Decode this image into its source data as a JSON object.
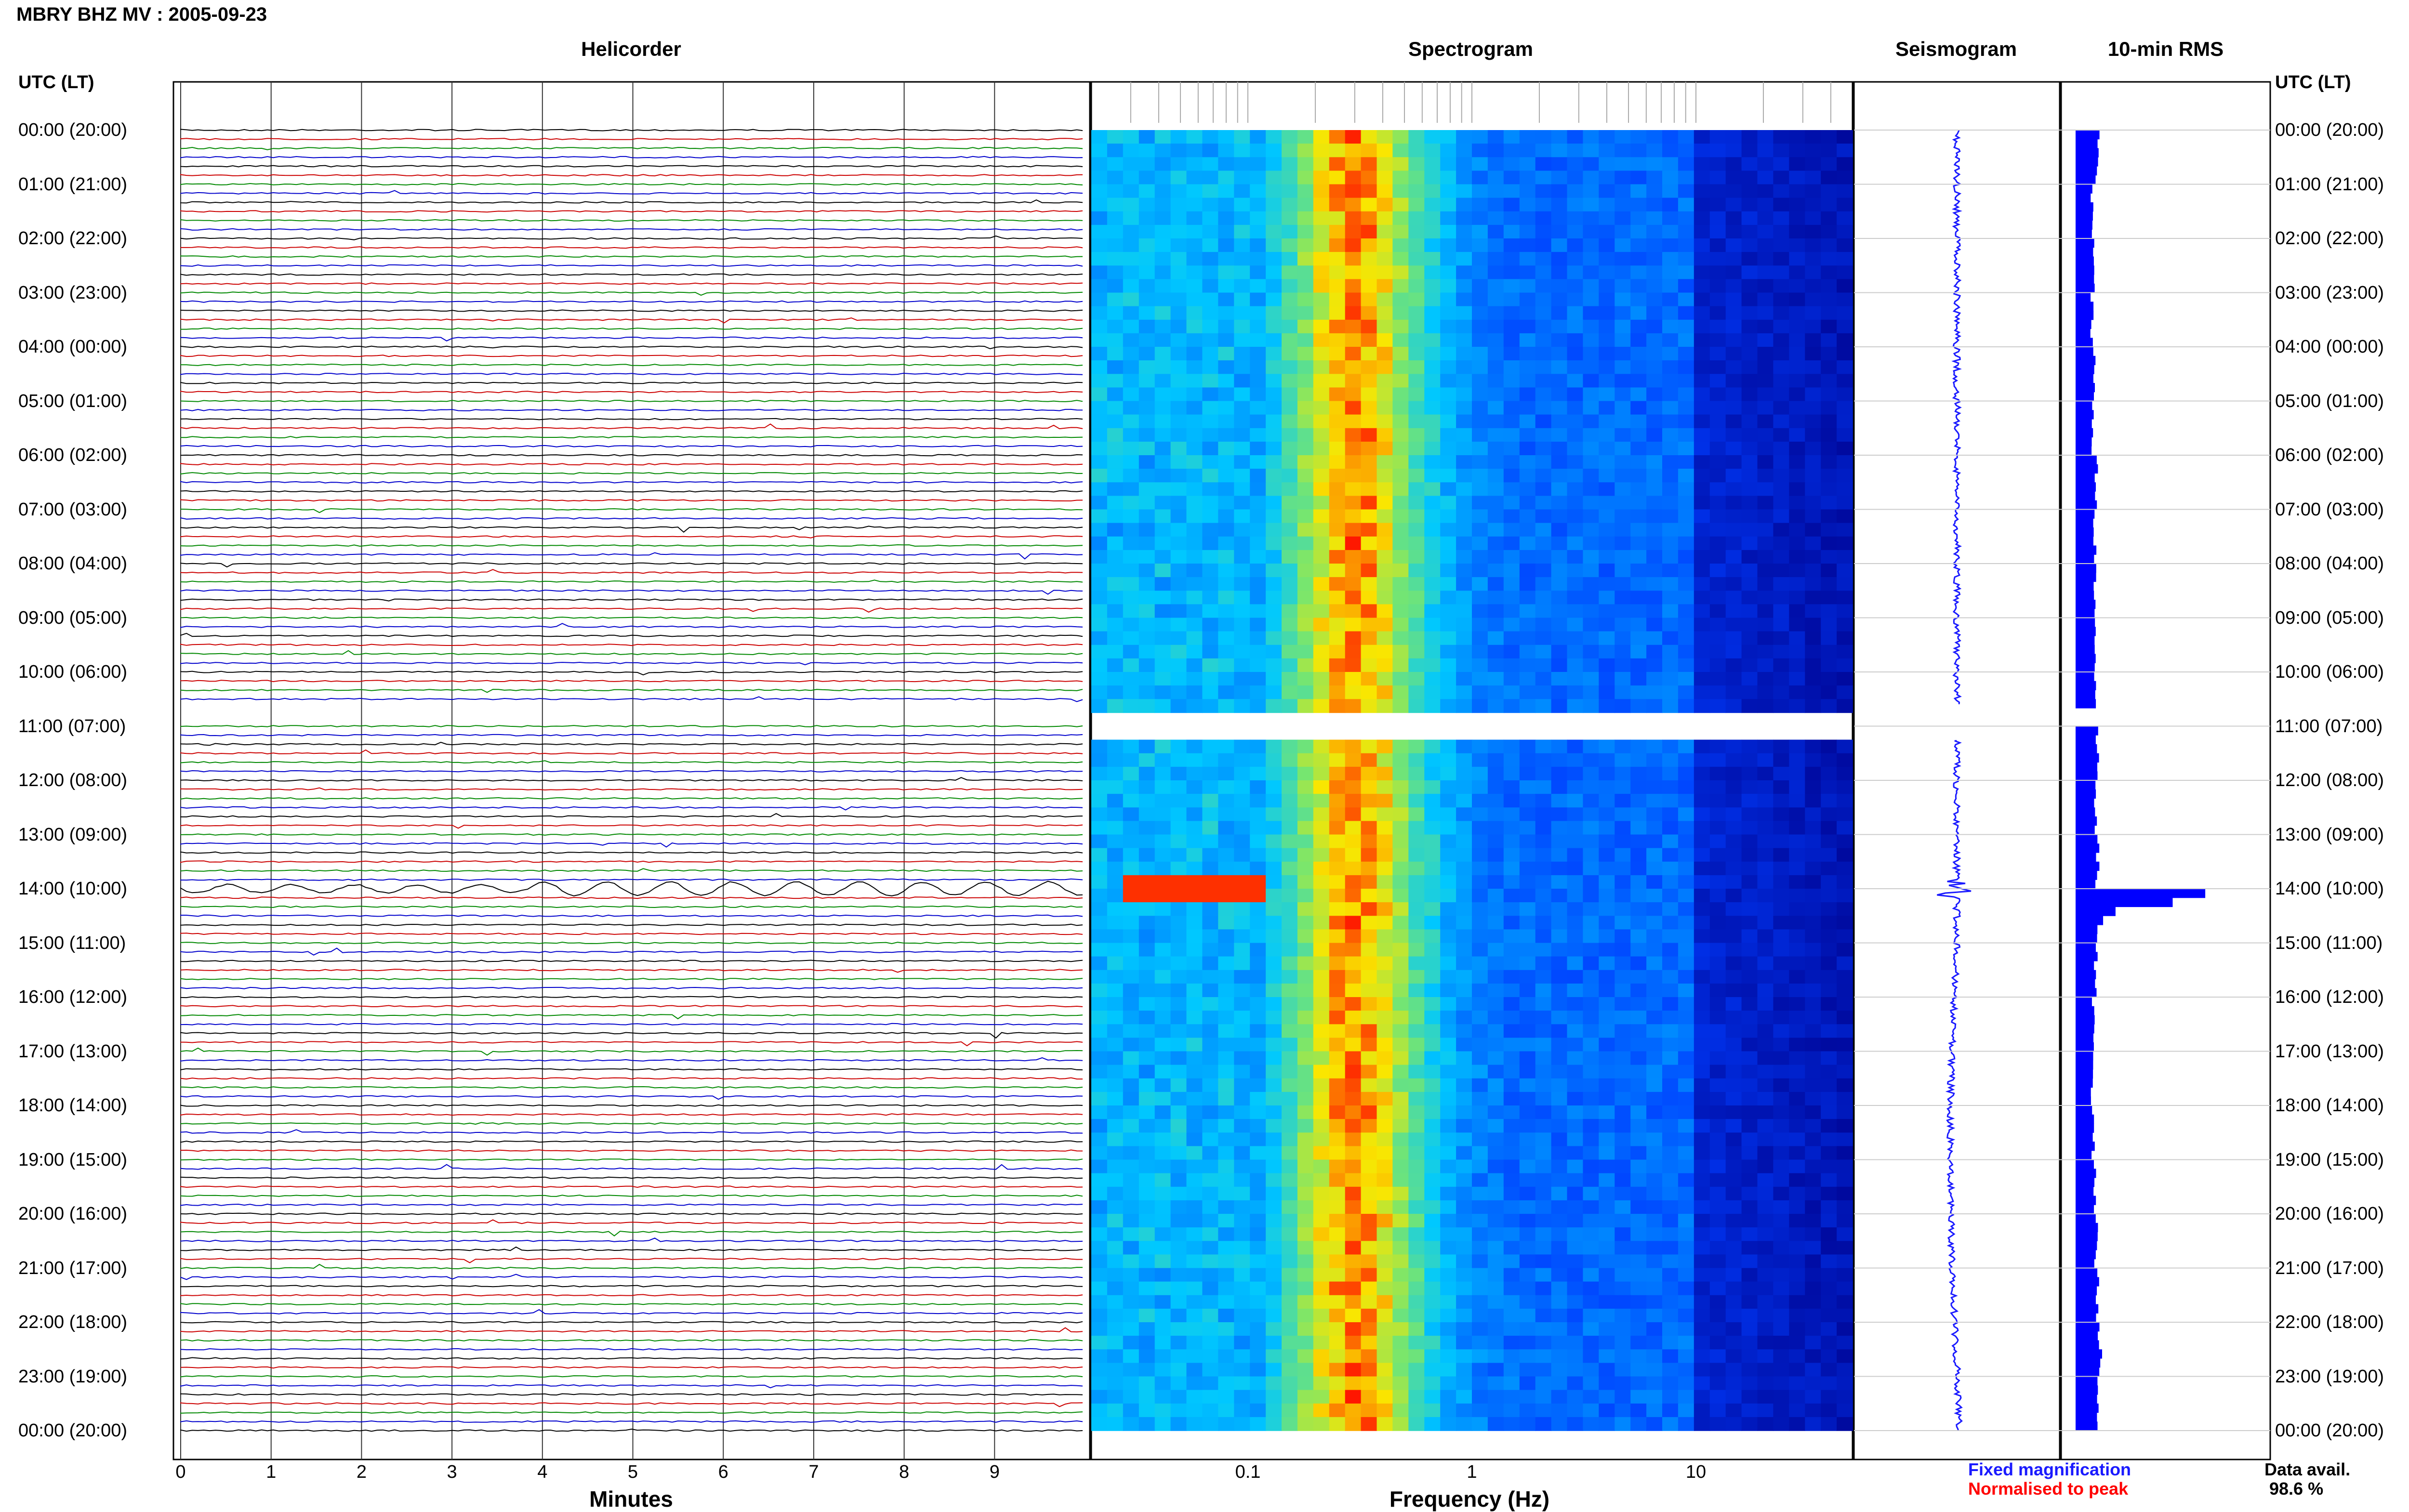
{
  "title": "MBRY BHZ MV : 2005-09-23",
  "panels": {
    "helicorder": "Helicorder",
    "spectrogram": "Spectrogram",
    "seismogram": "Seismogram",
    "rms": "10-min RMS"
  },
  "axis_header_left": "UTC (LT)",
  "axis_header_right": "UTC (LT)",
  "time_labels": [
    "00:00 (20:00)",
    "01:00 (21:00)",
    "02:00 (22:00)",
    "03:00 (23:00)",
    "04:00 (00:00)",
    "05:00 (01:00)",
    "06:00 (02:00)",
    "07:00 (03:00)",
    "08:00 (04:00)",
    "09:00 (05:00)",
    "10:00 (06:00)",
    "11:00 (07:00)",
    "12:00 (08:00)",
    "13:00 (09:00)",
    "14:00 (10:00)",
    "15:00 (11:00)",
    "16:00 (12:00)",
    "17:00 (13:00)",
    "18:00 (14:00)",
    "19:00 (15:00)",
    "20:00 (16:00)",
    "21:00 (17:00)",
    "22:00 (18:00)",
    "23:00 (19:00)",
    "00:00 (20:00)"
  ],
  "helicorder_xlabel": "Minutes",
  "helicorder_xticks": [
    "0",
    "1",
    "2",
    "3",
    "4",
    "5",
    "6",
    "7",
    "8",
    "9"
  ],
  "spectrogram_xlabel": "Frequency (Hz)",
  "spectrogram_xticks": [
    "0.1",
    "1",
    "10"
  ],
  "legend": {
    "fixed": "Fixed magnification",
    "normalised": "Normalised to peak",
    "fixed_color": "#1a1aff",
    "normalised_color": "#ff0000"
  },
  "data_avail_label": "Data avail.",
  "data_avail_value": "98.6 %",
  "colors": {
    "trace_cycle": [
      "#000000",
      "#cc0000",
      "#008800",
      "#0000cc"
    ],
    "rms_bar": "#0000ff",
    "spectrogram_low": "#00008b",
    "spectrogram_high": "#ff0000"
  },
  "chart_data": [
    {
      "type": "line",
      "name": "helicorder",
      "xlabel": "Minutes",
      "xlim": [
        0,
        10
      ],
      "time_range_hours": [
        0,
        24
      ],
      "lines_per_hour": 6,
      "data_gap_hours": [
        10.6,
        11.0
      ],
      "events": [
        {
          "hour": 14.0,
          "minute_start": 3.8,
          "amplitude": "large",
          "note": "long-period wave train"
        }
      ]
    },
    {
      "type": "heatmap",
      "name": "spectrogram",
      "xlabel": "Frequency (Hz)",
      "xscale": "log",
      "xlim": [
        0.02,
        50
      ],
      "peak_band_hz": [
        0.2,
        0.5
      ],
      "event": {
        "hour": 14.0,
        "freq_hz": [
          0.03,
          0.12
        ],
        "level": "max"
      },
      "data_gap_hours": [
        10.6,
        11.0
      ]
    },
    {
      "type": "line",
      "name": "seismogram",
      "time_range_hours": [
        0,
        24
      ],
      "event_hour": 14.0
    },
    {
      "type": "bar",
      "name": "10-min RMS",
      "orientation": "horizontal",
      "bin_minutes": 10,
      "units": "relative",
      "values_by_hour": [
        0.16,
        0.12,
        0.13,
        0.12,
        0.14,
        0.13,
        0.15,
        0.14,
        0.14,
        0.15,
        0.14,
        0.16,
        0.15,
        0.16,
        1.0,
        0.15,
        0.13,
        0.12,
        0.13,
        0.14,
        0.15,
        0.16,
        0.18,
        0.16
      ]
    }
  ]
}
